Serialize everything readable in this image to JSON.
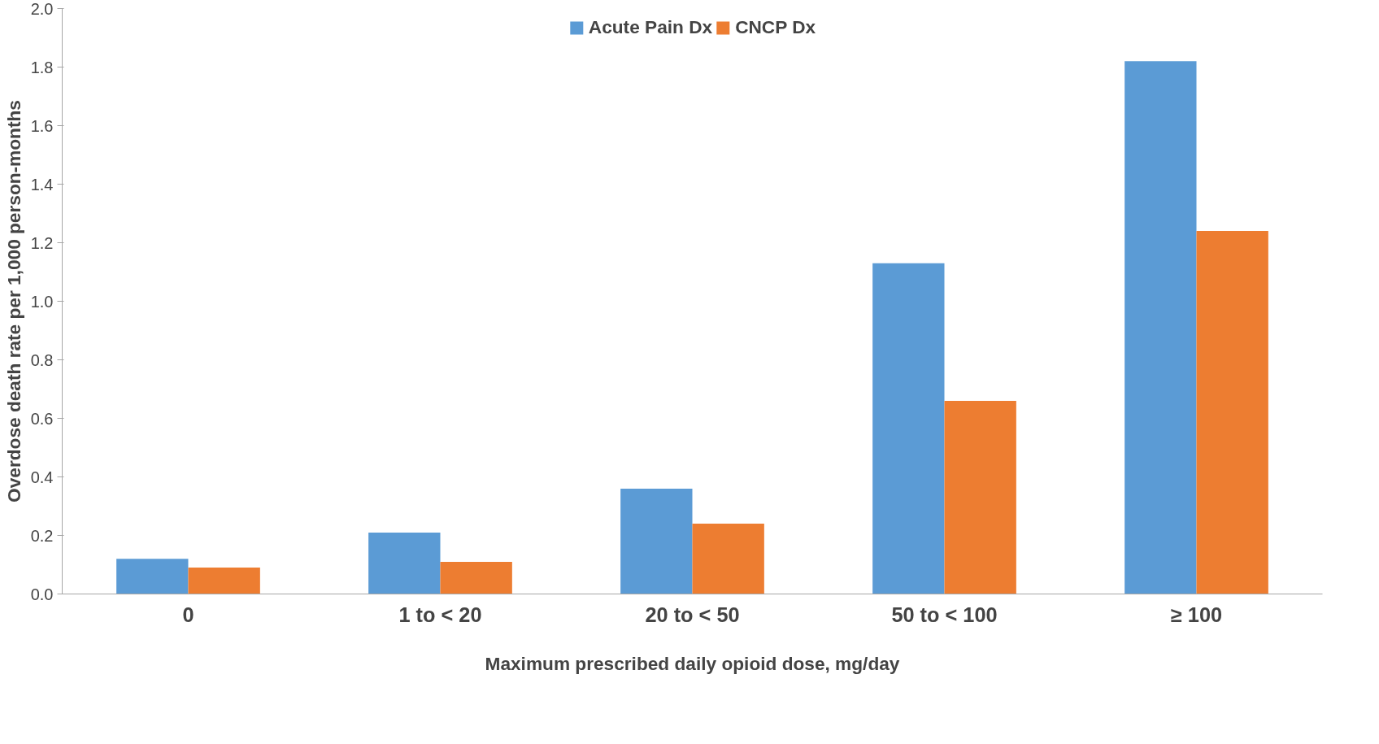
{
  "chart_data": {
    "type": "bar",
    "xlabel": "Maximum prescribed daily opioid dose, mg/day",
    "ylabel": "Overdose death rate per 1,000 person-months",
    "categories": [
      "0",
      "1 to < 20",
      "20 to < 50",
      "50 to < 100",
      "≥ 100"
    ],
    "series": [
      {
        "name": "Acute Pain Dx",
        "color": "#5b9bd5",
        "values": [
          0.12,
          0.21,
          0.36,
          1.13,
          1.82
        ]
      },
      {
        "name": "CNCP Dx",
        "color": "#ed7d31",
        "values": [
          0.09,
          0.11,
          0.24,
          0.66,
          1.24
        ]
      }
    ],
    "ylim": [
      0,
      2.0
    ],
    "yticks": [
      {
        "value": 0,
        "label": "0.0"
      },
      {
        "value": 0.2,
        "label": "0.2"
      },
      {
        "value": 0.4,
        "label": "0.4"
      },
      {
        "value": 0.6,
        "label": "0.6"
      },
      {
        "value": 0.8,
        "label": "0.8"
      },
      {
        "value": 1.0,
        "label": "1.0"
      },
      {
        "value": 1.2,
        "label": "1.2"
      },
      {
        "value": 1.4,
        "label": "1.4"
      },
      {
        "value": 1.6,
        "label": "1.6"
      },
      {
        "value": 1.8,
        "label": "1.8"
      },
      {
        "value": 2.0,
        "label": "2.0"
      }
    ],
    "grid": false,
    "legend": "top"
  }
}
